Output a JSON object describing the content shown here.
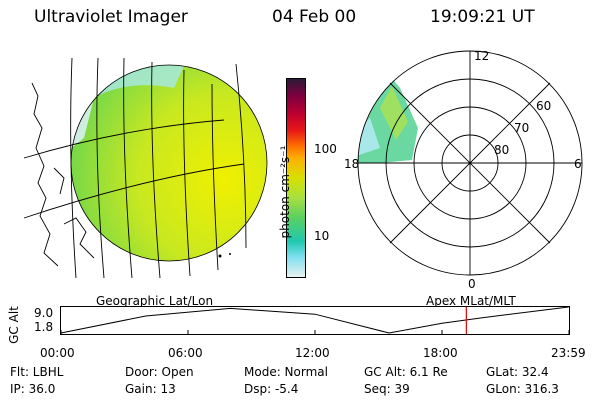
{
  "header": {
    "instrument": "Ultraviolet Imager",
    "date": "04 Feb 00",
    "time": "19:09:21 UT"
  },
  "colorbar": {
    "label": "photon cm⁻²s⁻¹",
    "tick_100": "100",
    "tick_10": "10",
    "colors": [
      "#2a1a3a",
      "#7a0040",
      "#c00030",
      "#e81818",
      "#ff7000",
      "#ffb000",
      "#d8e000",
      "#a8e040",
      "#5ad060",
      "#20c8b0",
      "#80e0f0",
      "#e8f0f0"
    ]
  },
  "globe": {
    "caption": "Geographic Lat/Lon"
  },
  "polar": {
    "caption": "Apex  MLat/MLT",
    "mlt_12": "12",
    "mlt_18": "18",
    "mlt_6": "6",
    "mlt_0": "0",
    "lat_60": "60",
    "lat_70": "70",
    "lat_80": "80"
  },
  "orbit": {
    "axis_label": "GC Alt",
    "y_top": "9.0",
    "y_bottom": "1.8",
    "ticks": [
      "00:00",
      "06:00",
      "12:00",
      "18:00",
      "23:59"
    ]
  },
  "info": {
    "flt": "Flt: LBHL",
    "door": "Door: Open",
    "mode": "Mode: Normal",
    "gcalt": "GC Alt: 6.1 Re",
    "glat": "GLat:  32.4",
    "ip": "IP: 36.0",
    "gain": "Gain: 13",
    "dsp": "Dsp:    -5.4",
    "seq": "Seq: 39",
    "glon": "GLon: 316.3"
  },
  "chart_data": {
    "type": "line",
    "title": "",
    "xlabel": "",
    "ylabel": "GC Alt",
    "x_ticks": [
      "00:00",
      "06:00",
      "12:00",
      "18:00",
      "23:59"
    ],
    "x": [
      0,
      4,
      8,
      12,
      15.5,
      18,
      20,
      23.98
    ],
    "values": [
      1.8,
      6.5,
      8.6,
      7.0,
      1.8,
      4.5,
      6.1,
      9.0
    ],
    "ylim": [
      1.8,
      9.0
    ],
    "current_time": "19:09"
  }
}
